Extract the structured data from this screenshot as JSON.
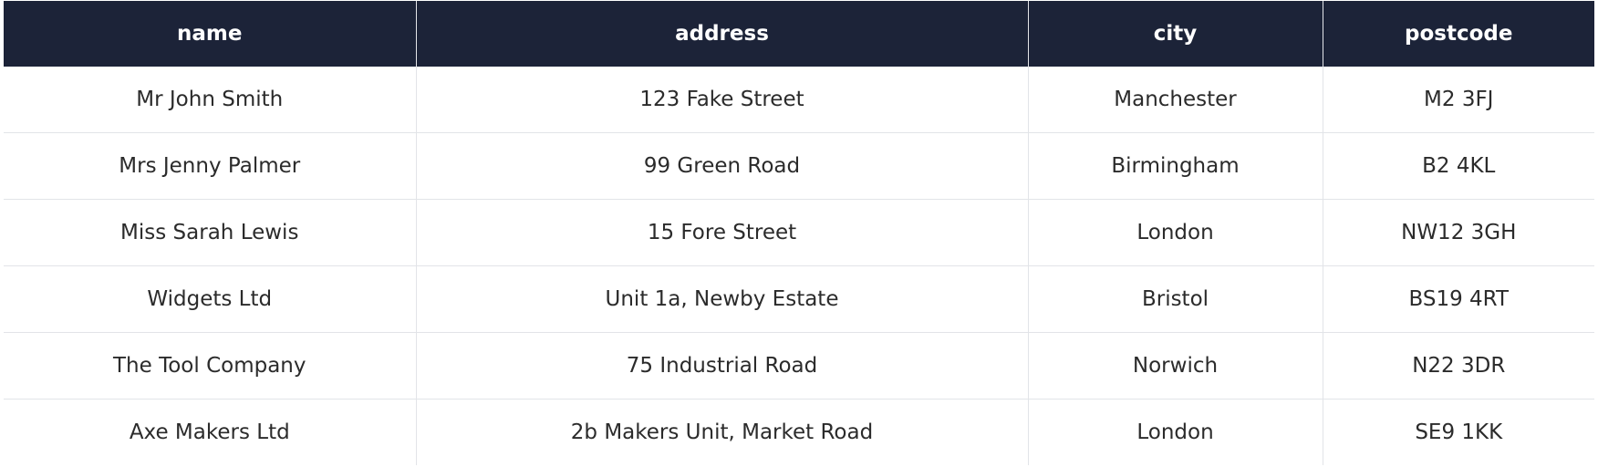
{
  "table": {
    "columns": [
      "name",
      "address",
      "city",
      "postcode"
    ],
    "rows": [
      [
        "Mr John Smith",
        "123 Fake Street",
        "Manchester",
        "M2 3FJ"
      ],
      [
        "Mrs Jenny Palmer",
        "99 Green Road",
        "Birmingham",
        "B2 4KL"
      ],
      [
        "Miss Sarah Lewis",
        "15 Fore Street",
        "London",
        "NW12 3GH"
      ],
      [
        "Widgets Ltd",
        "Unit 1a, Newby Estate",
        "Bristol",
        "BS19 4RT"
      ],
      [
        "The Tool Company",
        "75 Industrial Road",
        "Norwich",
        "N22 3DR"
      ],
      [
        "Axe Makers Ltd",
        "2b Makers Unit, Market Road",
        "London",
        "SE9 1KK"
      ]
    ]
  },
  "colors": {
    "header_background": "#1c2338",
    "header_text": "#ffffff",
    "cell_text": "#2b2b2b",
    "grid_line": "#e2e4e8"
  }
}
